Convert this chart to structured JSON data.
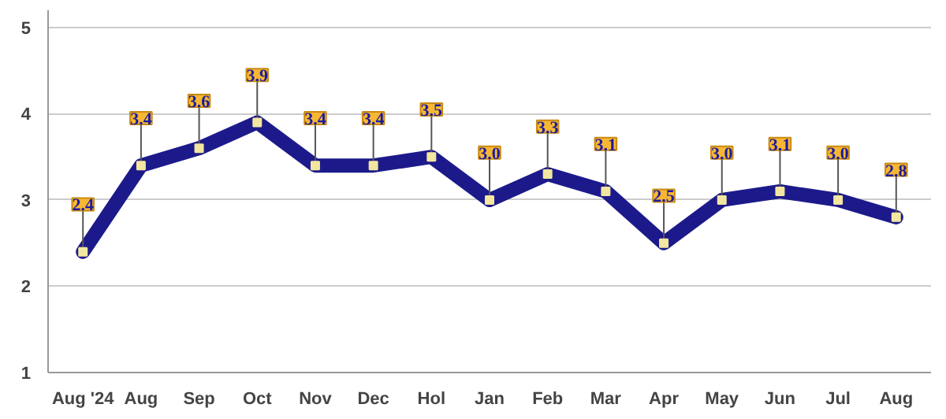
{
  "chart_data": {
    "type": "line",
    "categories": [
      "Aug '24",
      "Aug",
      "Sep",
      "Oct",
      "Nov",
      "Dec",
      "Hol",
      "Jan",
      "Feb",
      "Mar",
      "Apr",
      "May",
      "Jun",
      "Jul",
      "Aug"
    ],
    "series": [
      {
        "color": "#1c1a8a",
        "values": [
          2.4,
          3.4,
          3.6,
          3.9,
          3.4,
          3.4,
          3.5,
          3.0,
          3.3,
          3.1,
          2.5,
          3.0,
          3.1,
          3.0,
          2.8
        ],
        "value_labels": [
          "2.4",
          "3.4",
          "3.6",
          "3.9",
          "3.4",
          "3.4",
          "3.5",
          "3.0",
          "3.3",
          "3.1",
          "2.5",
          "3.0",
          "3.1",
          "3.0",
          "2.8"
        ]
      }
    ],
    "ylim": [
      1,
      5.2
    ],
    "yticks": [
      1,
      2,
      3,
      4,
      5
    ],
    "grid": "y",
    "marker": "square",
    "line_style": "solid"
  }
}
